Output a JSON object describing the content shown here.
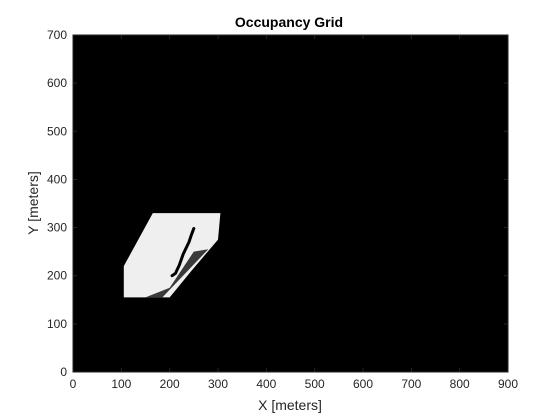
{
  "chart_data": {
    "type": "heatmap",
    "title": "Occupancy Grid",
    "xlabel": "X [meters]",
    "ylabel": "Y [meters]",
    "xlim": [
      0,
      900
    ],
    "ylim": [
      0,
      700
    ],
    "xticks": [
      0,
      100,
      200,
      300,
      400,
      500,
      600,
      700,
      800,
      900
    ],
    "yticks": [
      0,
      100,
      200,
      300,
      400,
      500,
      600,
      700
    ],
    "grid": false,
    "colormap": "grayscale (black = occupied, white = free)",
    "background_value": "occupied",
    "free_region": {
      "polygon": [
        [
          105,
          155
        ],
        [
          105,
          220
        ],
        [
          165,
          330
        ],
        [
          305,
          330
        ],
        [
          300,
          275
        ],
        [
          245,
          210
        ],
        [
          200,
          155
        ]
      ],
      "shadow_polygon": [
        [
          150,
          155
        ],
        [
          185,
          155
        ],
        [
          280,
          255
        ],
        [
          250,
          250
        ],
        [
          200,
          175
        ]
      ]
    },
    "path": {
      "name": "",
      "points": [
        [
          205,
          200
        ],
        [
          212,
          205
        ],
        [
          220,
          222
        ],
        [
          228,
          245
        ],
        [
          240,
          270
        ],
        [
          245,
          285
        ],
        [
          250,
          298
        ]
      ]
    }
  }
}
